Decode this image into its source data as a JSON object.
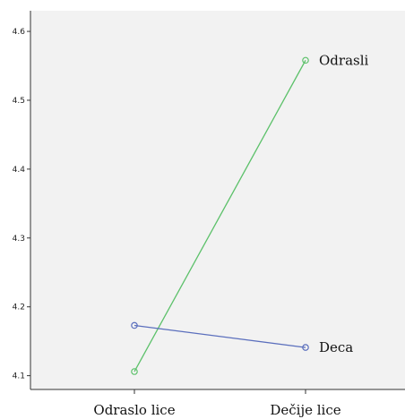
{
  "chart_data": {
    "type": "line",
    "categories": [
      "Odraslo lice",
      "Dečije lice"
    ],
    "series": [
      {
        "name": "Odrasli",
        "values": [
          4.106,
          4.558
        ],
        "color": "#5cc16a"
      },
      {
        "name": "Deca",
        "values": [
          4.173,
          4.141
        ],
        "color": "#5b6fbd"
      }
    ],
    "ylim": [
      4.08,
      4.63
    ],
    "yticks": [
      4.1,
      4.2,
      4.3,
      4.4,
      4.5,
      4.6
    ],
    "ytick_labels": [
      "4.1",
      "4.2",
      "4.3",
      "4.4",
      "4.5",
      "4.6"
    ],
    "marker": "open-circle",
    "plot_background": "#f2f2f2",
    "grid": false,
    "legend": "inline labels at line ends"
  }
}
